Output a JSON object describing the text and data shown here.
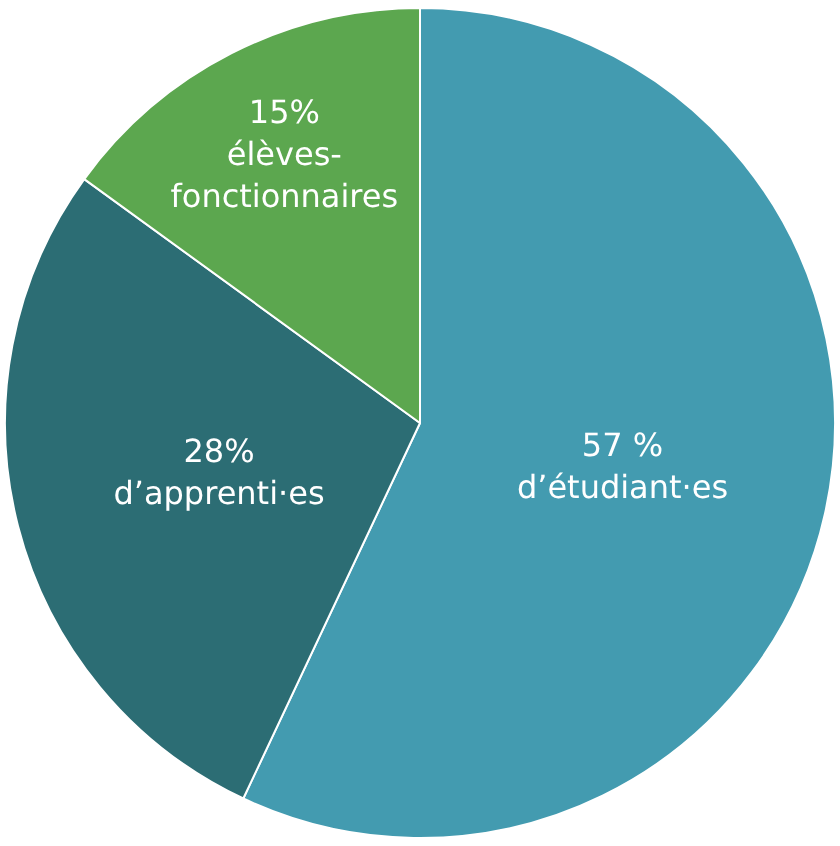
{
  "chart_data": {
    "type": "pie",
    "categories": [
      "d’étudiant·es",
      "d’apprenti·es",
      "élèves-fonctionnaires"
    ],
    "values": [
      57,
      28,
      15
    ],
    "value_labels": [
      "57 %",
      "28%",
      "15%"
    ],
    "colors": [
      "#439bb0",
      "#2c6d74",
      "#5ca74f"
    ],
    "legend": false
  }
}
